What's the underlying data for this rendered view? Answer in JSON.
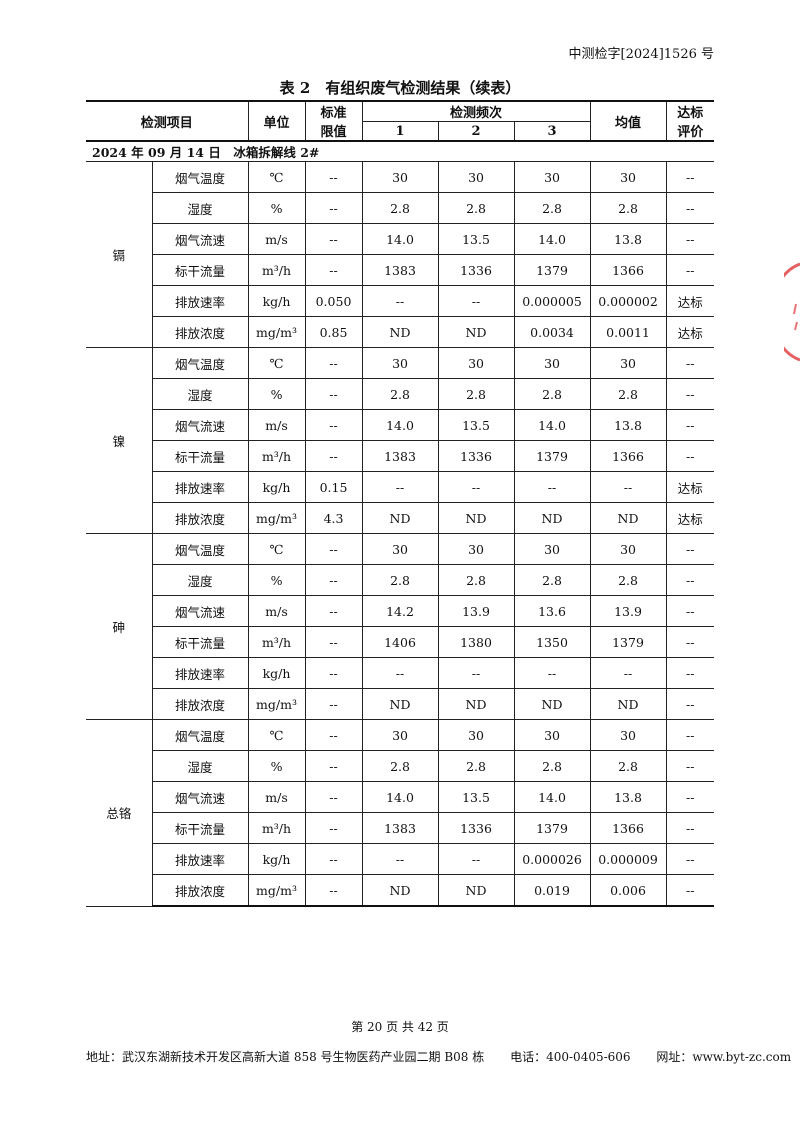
{
  "doc_number": "中测检字[2024]1526 号",
  "table_title": "表 2　有组织废气检测结果（续表）",
  "headers": {
    "item": "检测项目",
    "unit": "单位",
    "limit": "标准\n限值",
    "frequency": "检测频次",
    "f1": "1",
    "f2": "2",
    "f3": "3",
    "avg": "均值",
    "eval": "达标\n评价"
  },
  "section": "2024 年 09 月 14 日　冰箱拆解线 2#",
  "groups": [
    {
      "name": "镉",
      "rows": [
        [
          "烟气温度",
          "℃",
          "--",
          "30",
          "30",
          "30",
          "30",
          "--"
        ],
        [
          "湿度",
          "%",
          "--",
          "2.8",
          "2.8",
          "2.8",
          "2.8",
          "--"
        ],
        [
          "烟气流速",
          "m/s",
          "--",
          "14.0",
          "13.5",
          "14.0",
          "13.8",
          "--"
        ],
        [
          "标干流量",
          "m³/h",
          "--",
          "1383",
          "1336",
          "1379",
          "1366",
          "--"
        ],
        [
          "排放速率",
          "kg/h",
          "0.050",
          "--",
          "--",
          "0.000005",
          "0.000002",
          "达标"
        ],
        [
          "排放浓度",
          "mg/m³",
          "0.85",
          "ND",
          "ND",
          "0.0034",
          "0.0011",
          "达标"
        ]
      ]
    },
    {
      "name": "镍",
      "rows": [
        [
          "烟气温度",
          "℃",
          "--",
          "30",
          "30",
          "30",
          "30",
          "--"
        ],
        [
          "湿度",
          "%",
          "--",
          "2.8",
          "2.8",
          "2.8",
          "2.8",
          "--"
        ],
        [
          "烟气流速",
          "m/s",
          "--",
          "14.0",
          "13.5",
          "14.0",
          "13.8",
          "--"
        ],
        [
          "标干流量",
          "m³/h",
          "--",
          "1383",
          "1336",
          "1379",
          "1366",
          "--"
        ],
        [
          "排放速率",
          "kg/h",
          "0.15",
          "--",
          "--",
          "--",
          "--",
          "达标"
        ],
        [
          "排放浓度",
          "mg/m³",
          "4.3",
          "ND",
          "ND",
          "ND",
          "ND",
          "达标"
        ]
      ]
    },
    {
      "name": "砷",
      "rows": [
        [
          "烟气温度",
          "℃",
          "--",
          "30",
          "30",
          "30",
          "30",
          "--"
        ],
        [
          "湿度",
          "%",
          "--",
          "2.8",
          "2.8",
          "2.8",
          "2.8",
          "--"
        ],
        [
          "烟气流速",
          "m/s",
          "--",
          "14.2",
          "13.9",
          "13.6",
          "13.9",
          "--"
        ],
        [
          "标干流量",
          "m³/h",
          "--",
          "1406",
          "1380",
          "1350",
          "1379",
          "--"
        ],
        [
          "排放速率",
          "kg/h",
          "--",
          "--",
          "--",
          "--",
          "--",
          "--"
        ],
        [
          "排放浓度",
          "mg/m³",
          "--",
          "ND",
          "ND",
          "ND",
          "ND",
          "--"
        ]
      ]
    },
    {
      "name": "总铬",
      "rows": [
        [
          "烟气温度",
          "℃",
          "--",
          "30",
          "30",
          "30",
          "30",
          "--"
        ],
        [
          "湿度",
          "%",
          "--",
          "2.8",
          "2.8",
          "2.8",
          "2.8",
          "--"
        ],
        [
          "烟气流速",
          "m/s",
          "--",
          "14.0",
          "13.5",
          "14.0",
          "13.8",
          "--"
        ],
        [
          "标干流量",
          "m³/h",
          "--",
          "1383",
          "1336",
          "1379",
          "1366",
          "--"
        ],
        [
          "排放速率",
          "kg/h",
          "--",
          "--",
          "--",
          "0.000026",
          "0.000009",
          "--"
        ],
        [
          "排放浓度",
          "mg/m³",
          "--",
          "ND",
          "ND",
          "0.019",
          "0.006",
          "--"
        ]
      ]
    }
  ],
  "footer": {
    "page": "第 20 页 共 42 页",
    "address": "地址：武汉东湖新技术开发区高新大道 858 号生物医药产业园二期 B08 栋",
    "phone": "电话：400-0405-606",
    "website": "网址：www.byt-zc.com"
  },
  "colors": {
    "seal": "#e03a3a"
  }
}
